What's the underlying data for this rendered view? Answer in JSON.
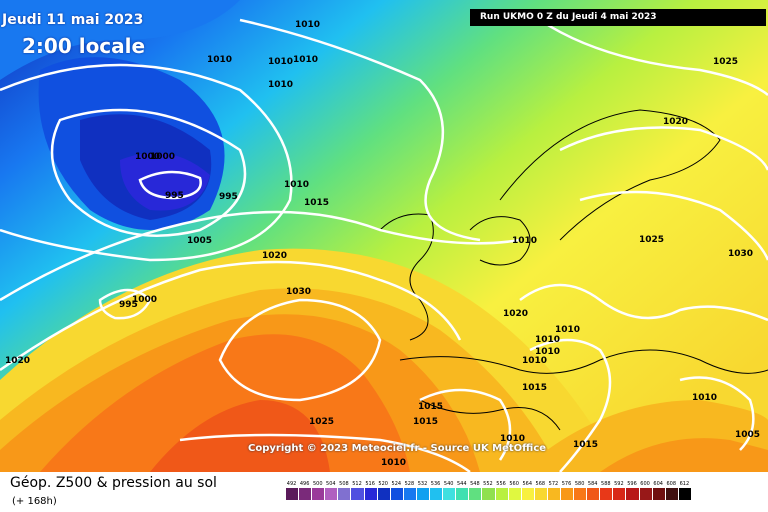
{
  "header": {
    "date": "Jeudi 11 mai 2023",
    "time": "2:00 locale",
    "run": "Run UKMO 0 Z du Jeudi 4 mai 2023"
  },
  "footer": {
    "copyright": "Copyright © 2023 Meteociel.fr - Source UK MetOffice",
    "title": "Géop. Z500 & pression au sol",
    "range": "(+ 168h)"
  },
  "legend": {
    "ticks": [
      "492",
      "496",
      "500",
      "504",
      "508",
      "512",
      "516",
      "520",
      "524",
      "528",
      "532",
      "536",
      "540",
      "544",
      "548",
      "552",
      "556",
      "560",
      "564",
      "568",
      "572",
      "576",
      "580",
      "584",
      "588",
      "592",
      "596",
      "600",
      "604",
      "608",
      "612"
    ],
    "colors": [
      "#5a1a5a",
      "#7a2a7a",
      "#9a3a9a",
      "#b060c0",
      "#8070d0",
      "#5050e0",
      "#2828d8",
      "#1030c0",
      "#1050e0",
      "#1878f0",
      "#10a0f0",
      "#20c0f0",
      "#40e0e0",
      "#40e0b0",
      "#60e080",
      "#90e050",
      "#b8f040",
      "#e0f840",
      "#f8f040",
      "#f8d830",
      "#f8b820",
      "#f89818",
      "#f87818",
      "#f05818",
      "#e83818",
      "#d82818",
      "#b81818",
      "#981818",
      "#701010",
      "#401010",
      "#000000"
    ]
  },
  "pressure_labels": [
    "1010",
    "1010",
    "1010",
    "1010",
    "1010",
    "1000",
    "1000",
    "995",
    "995",
    "1005",
    "1020",
    "1030",
    "1000",
    "995",
    "1020",
    "1010",
    "1015",
    "1025",
    "1020",
    "1025",
    "1030",
    "1010",
    "1020",
    "1010",
    "1010",
    "1010",
    "1010",
    "1015",
    "1015",
    "1015",
    "1010",
    "1015",
    "1025",
    "1010",
    "1010",
    "1005"
  ],
  "colors": {
    "contour": "#ffffff",
    "coast": "#000000"
  }
}
